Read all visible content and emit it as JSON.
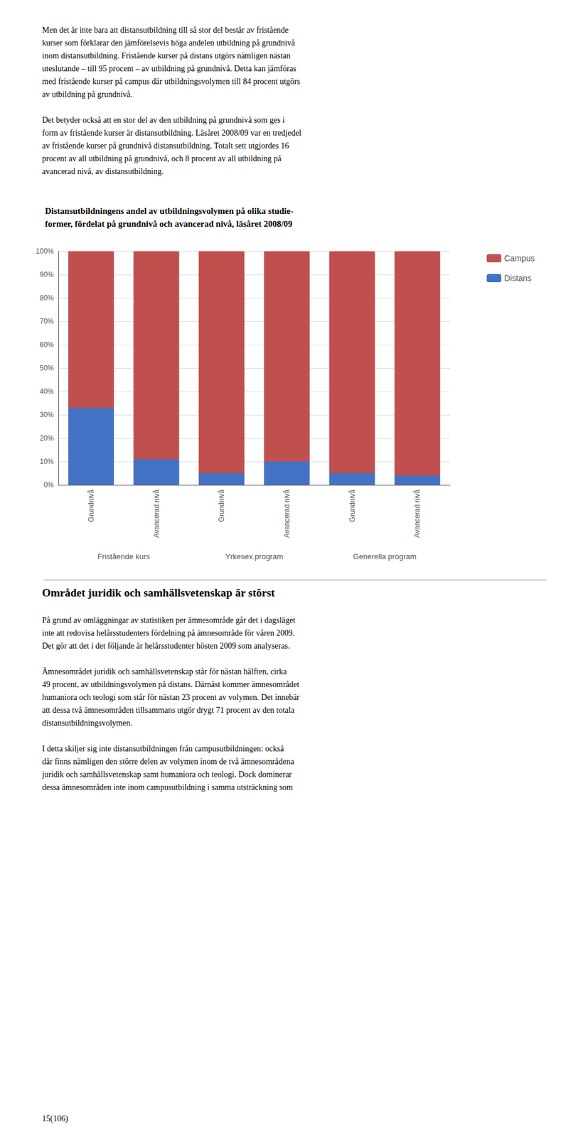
{
  "chart_data": {
    "type": "bar",
    "title": "Distansutbildningens andel av utbildningsvolymen på olika studie-\nformer, fördelat på grundnivå och avancerad nivå, läsåret 2008/09",
    "categories": [
      "Grundnivå",
      "Avancerad nivå",
      "Grundnivå",
      "Avancerad nivå",
      "Grundnivå",
      "Avancerad nivå"
    ],
    "groups": [
      "Fristående kurs",
      "Yrkesex.program",
      "Generella program"
    ],
    "series": [
      {
        "name": "Distans",
        "color": "#4472C4",
        "values": [
          33,
          11,
          5,
          10,
          5,
          4
        ]
      },
      {
        "name": "Campus",
        "color": "#C0504D",
        "values": [
          67,
          89,
          95,
          90,
          95,
          96
        ]
      }
    ],
    "stacked": true,
    "ylim": [
      0,
      100
    ],
    "yticks": [
      {
        "value": 0,
        "label": "0%"
      },
      {
        "value": 10,
        "label": "10%"
      },
      {
        "value": 20,
        "label": "20%"
      },
      {
        "value": 30,
        "label": "30%"
      },
      {
        "value": 40,
        "label": "40%"
      },
      {
        "value": 50,
        "label": "50%"
      },
      {
        "value": 60,
        "label": "60%"
      },
      {
        "value": 70,
        "label": "70%"
      },
      {
        "value": 80,
        "label": "80%"
      },
      {
        "value": 90,
        "label": "90%"
      },
      {
        "value": 100,
        "label": "100%"
      }
    ],
    "grid": true,
    "legend": "right"
  },
  "top_text": "Men det är inte bara att distansutbildning till så stor del består av fristående\nkurser som förklarar den jämförelsevis höga andelen utbildning på grundnivå\ninom distansutbildning. Fristående kurser på distans utgörs nämligen nästan\nuteslutande – till 95 procent – av utbildning på grundnivå. Detta kan jämföras\nmed fristående kurser på campus där utbildningsvolymen till 84 procent utgörs\nav utbildning på grundnivå.\n\nDet betyder också att en stor del av den utbildning på grundnivå som ges i\nform av fristående kurser är distansutbildning. Läsåret 2008/09 var en tredjedel\nav fristående kurser på grundnivå distansutbildning. Totalt sett utgjordes 16\nprocent av all utbildning på grundnivå, och 8 procent av all utbildning på\navancerad nivå, av distansutbildning.",
  "bottom_title": "Området juridik och samhällsvetenskap är störst",
  "bottom_text": "På grund av omläggningar av statistiken per ämnesområde går det i dagsläget\ninte att redovisa helårsstudenters fördelning på ämnesområde för våren 2009.\nDet gör att det i det följande är helårsstudenter hösten 2009 som analyseras.\n\nÄmnesområdet juridik och samhällsvetenskap står för nästan hälften, cirka\n49 procent, av utbildningsvolymen på distans. Därnäst kommer ämnesområdet\nhumaniora och teologi som står för nästan 23 procent av volymen. Det innebär\natt dessa två ämnesområden tillsammans utgör drygt 71 procent av den totala\ndistansutbildningsvolymen.\n\nI detta skiljer sig inte distansutbildningen från campusutbildningen: också\ndär finns nämligen den större delen av volymen inom de två ämnesområdena\njuridik och samhällsvetenskap samt humaniora och teologi. Dock dominerar\ndessa ämnesområden inte inom campusutbildning i samma utsträckning som",
  "page_number": "15(106)"
}
